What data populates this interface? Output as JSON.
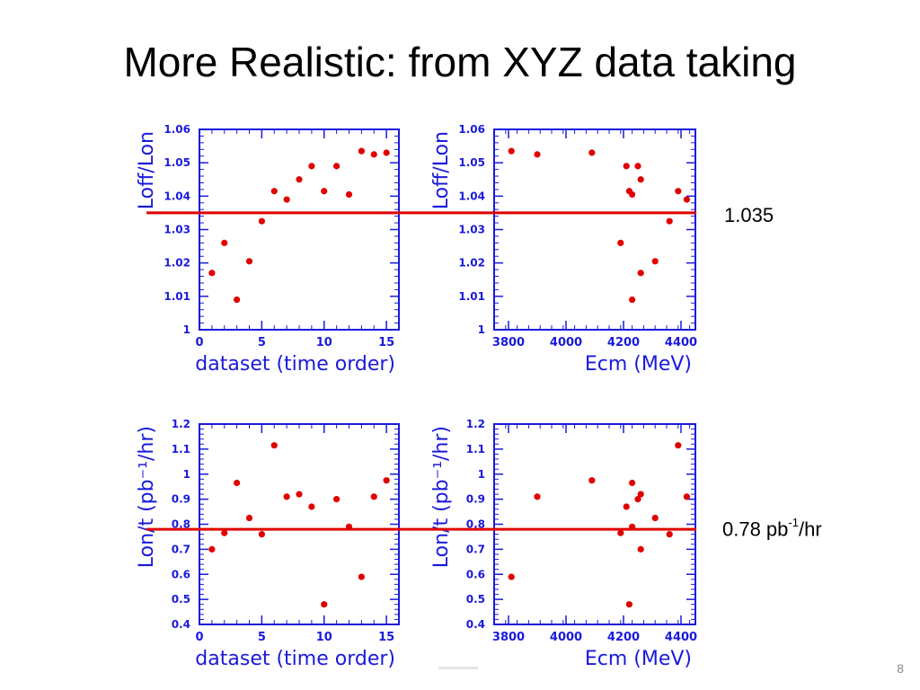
{
  "slide": {
    "title": "More Realistic: from XYZ data taking",
    "annotations": {
      "loff_value": "1.035",
      "lon_value": "0.78 pb",
      "lon_sup": "-1",
      "lon_unit": "/hr"
    },
    "page_number": "8"
  },
  "colors": {
    "axes": "#1a1adb",
    "points": "#e00000",
    "ref_line": "#e00000"
  },
  "chart_data": [
    {
      "type": "scatter",
      "xlabel": "dataset (time order)",
      "ylabel": "Loff/Lon",
      "xlim": [
        0,
        16
      ],
      "ylim": [
        1,
        1.06
      ],
      "xticks": [
        0,
        5,
        10,
        15
      ],
      "xtick_labels": [
        "0",
        "5",
        "10",
        "15"
      ],
      "yticks": [
        1,
        1.01,
        1.02,
        1.03,
        1.04,
        1.05,
        1.06
      ],
      "ytick_labels": [
        "1",
        "1.01",
        "1.02",
        "1.03",
        "1.04",
        "1.05",
        "1.06"
      ],
      "reference_line": 1.035,
      "points": [
        [
          1,
          1.017
        ],
        [
          2,
          1.026
        ],
        [
          3,
          1.009
        ],
        [
          4,
          1.0205
        ],
        [
          5,
          1.0325
        ],
        [
          6,
          1.0415
        ],
        [
          7,
          1.039
        ],
        [
          8,
          1.045
        ],
        [
          9,
          1.049
        ],
        [
          10,
          1.0415
        ],
        [
          11,
          1.049
        ],
        [
          12,
          1.0405
        ],
        [
          13,
          1.0535
        ],
        [
          14,
          1.0525
        ],
        [
          15,
          1.053
        ]
      ]
    },
    {
      "type": "scatter",
      "xlabel": "Ecm (MeV)",
      "ylabel": "Loff/Lon",
      "xlim": [
        3750,
        4450
      ],
      "ylim": [
        1,
        1.06
      ],
      "xticks": [
        3800,
        4000,
        4200,
        4400
      ],
      "xtick_labels": [
        "3800",
        "4000",
        "4200",
        "4400"
      ],
      "yticks": [
        1,
        1.01,
        1.02,
        1.03,
        1.04,
        1.05,
        1.06
      ],
      "ytick_labels": [
        "1",
        "1.01",
        "1.02",
        "1.03",
        "1.04",
        "1.05",
        "1.06"
      ],
      "reference_line": 1.035,
      "points": [
        [
          3810,
          1.0535
        ],
        [
          3900,
          1.0525
        ],
        [
          4090,
          1.053
        ],
        [
          4190,
          1.026
        ],
        [
          4210,
          1.049
        ],
        [
          4220,
          1.0415
        ],
        [
          4230,
          1.0405
        ],
        [
          4230,
          1.009
        ],
        [
          4250,
          1.049
        ],
        [
          4260,
          1.045
        ],
        [
          4260,
          1.017
        ],
        [
          4310,
          1.0205
        ],
        [
          4360,
          1.0325
        ],
        [
          4390,
          1.0415
        ],
        [
          4420,
          1.039
        ]
      ]
    },
    {
      "type": "scatter",
      "xlabel": "dataset (time order)",
      "ylabel": "Lon/t (pb⁻¹/hr)",
      "xlim": [
        0,
        16
      ],
      "ylim": [
        0.4,
        1.2
      ],
      "xticks": [
        0,
        5,
        10,
        15
      ],
      "xtick_labels": [
        "0",
        "5",
        "10",
        "15"
      ],
      "yticks": [
        0.4,
        0.5,
        0.6,
        0.7,
        0.8,
        0.9,
        1,
        1.1,
        1.2
      ],
      "ytick_labels": [
        "0.4",
        "0.5",
        "0.6",
        "0.7",
        "0.8",
        "0.9",
        "1",
        "1.1",
        "1.2"
      ],
      "reference_line": 0.78,
      "points": [
        [
          1,
          0.7
        ],
        [
          2,
          0.765
        ],
        [
          3,
          0.965
        ],
        [
          4,
          0.825
        ],
        [
          5,
          0.76
        ],
        [
          6,
          1.115
        ],
        [
          7,
          0.91
        ],
        [
          8,
          0.92
        ],
        [
          9,
          0.87
        ],
        [
          10,
          0.48
        ],
        [
          11,
          0.9
        ],
        [
          12,
          0.79
        ],
        [
          13,
          0.59
        ],
        [
          14,
          0.91
        ],
        [
          15,
          0.975
        ]
      ]
    },
    {
      "type": "scatter",
      "xlabel": "Ecm (MeV)",
      "ylabel": "Lon/t (pb⁻¹/hr)",
      "xlim": [
        3750,
        4450
      ],
      "ylim": [
        0.4,
        1.2
      ],
      "xticks": [
        3800,
        4000,
        4200,
        4400
      ],
      "xtick_labels": [
        "3800",
        "4000",
        "4200",
        "4400"
      ],
      "yticks": [
        0.4,
        0.5,
        0.6,
        0.7,
        0.8,
        0.9,
        1,
        1.1,
        1.2
      ],
      "ytick_labels": [
        "0.4",
        "0.5",
        "0.6",
        "0.7",
        "0.8",
        "0.9",
        "1",
        "1.1",
        "1.2"
      ],
      "reference_line": 0.78,
      "points": [
        [
          3810,
          0.59
        ],
        [
          3900,
          0.91
        ],
        [
          4090,
          0.975
        ],
        [
          4190,
          0.765
        ],
        [
          4210,
          0.87
        ],
        [
          4220,
          0.48
        ],
        [
          4230,
          0.965
        ],
        [
          4230,
          0.79
        ],
        [
          4250,
          0.9
        ],
        [
          4260,
          0.92
        ],
        [
          4260,
          0.7
        ],
        [
          4310,
          0.825
        ],
        [
          4360,
          0.76
        ],
        [
          4390,
          1.115
        ],
        [
          4420,
          0.91
        ]
      ]
    }
  ]
}
